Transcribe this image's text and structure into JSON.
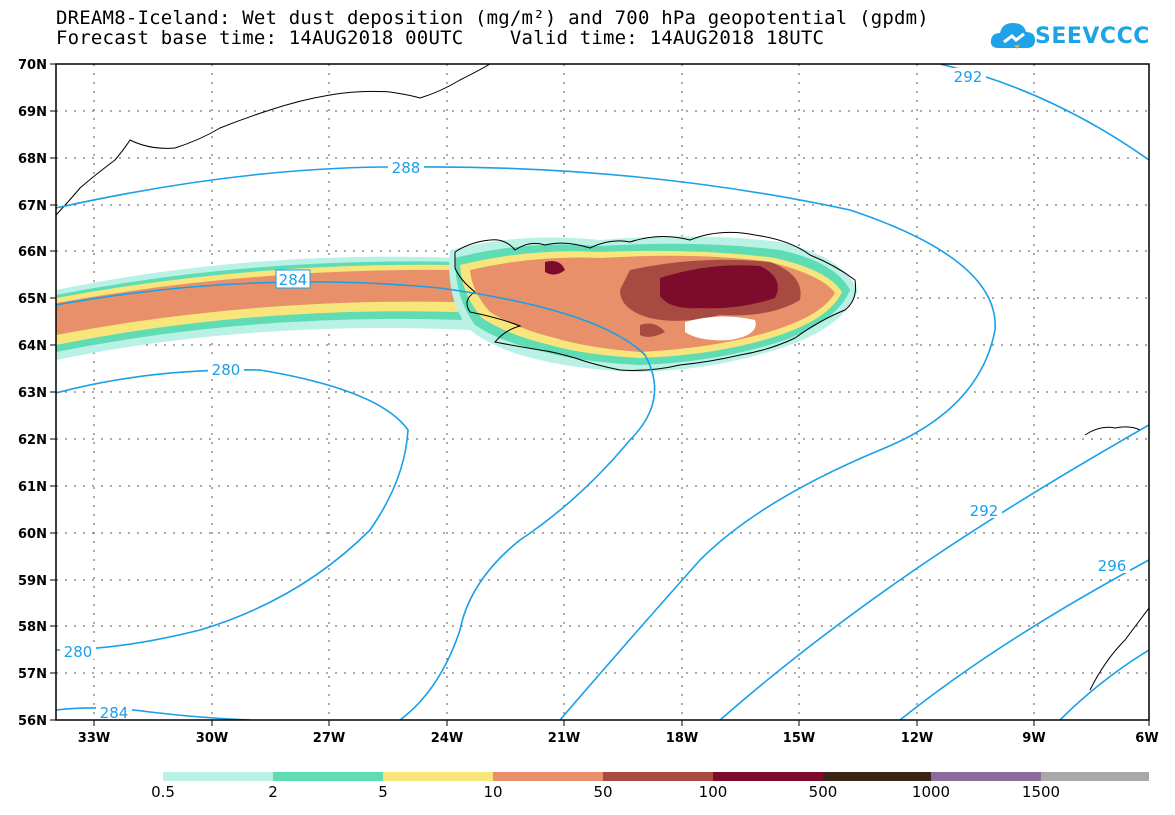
{
  "title_line1": "DREAM8-Iceland: Wet dust deposition (mg/m²) and 700 hPa geopotential (gpdm)",
  "title_line2": "Forecast base time: 14AUG2018 00UTC    Valid time: 14AUG2018 18UTC",
  "logo_text": "SEEVCCC",
  "colors": {
    "contour": "#1a9fe8",
    "grid": "#555555"
  },
  "lat_labels": [
    "70N",
    "69N",
    "68N",
    "67N",
    "66N",
    "65N",
    "64N",
    "63N",
    "62N",
    "61N",
    "60N",
    "59N",
    "58N",
    "57N",
    "56N"
  ],
  "lon_labels": [
    "33W",
    "30W",
    "27W",
    "24W",
    "21W",
    "18W",
    "15W",
    "12W",
    "9W",
    "6W"
  ],
  "contour_labels": [
    "292",
    "288",
    "284",
    "280",
    "280",
    "284",
    "292",
    "296"
  ],
  "legend": {
    "labels": [
      "0.5",
      "2",
      "5",
      "10",
      "50",
      "100",
      "500",
      "1000",
      "1500"
    ],
    "colors": [
      "#b9f1e6",
      "#5fdcb4",
      "#f8e67c",
      "#e8906a",
      "#a64a42",
      "#7d0c2c",
      "#3a2516",
      "#8c6a9c",
      "#a8a8a8",
      "#a8a8a8"
    ]
  }
}
